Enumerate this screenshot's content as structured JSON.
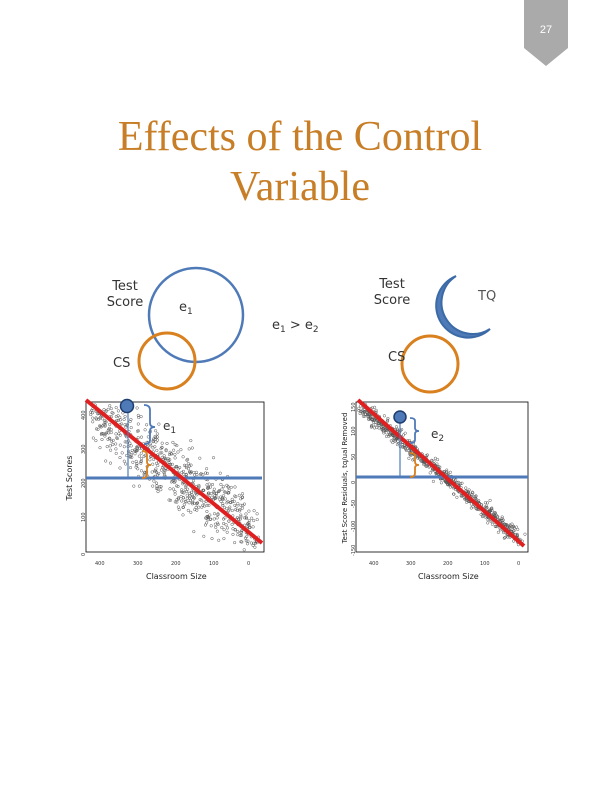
{
  "page_number": "27",
  "title_line1": "Effects of the Control",
  "title_line2": "Variable",
  "left_diagram": {
    "y_label_line1": "Test",
    "y_label_line2": "Score",
    "x_label": "CS",
    "error_base": "e",
    "error_sub": "1"
  },
  "middle": {
    "e_base1": "e",
    "sub1": "1",
    "op": ">",
    "e_base2": "e",
    "sub2": "2"
  },
  "right_diagram": {
    "y_label_line1": "Test",
    "y_label_line2": "Score",
    "x_label": "CS",
    "error_base": "e",
    "error_sub": "2",
    "control_label": "TQ"
  },
  "left_plot": {
    "ylabel": "Test Scores",
    "xlabel": "Classroom Size",
    "yticks": [
      "0",
      "100",
      "200",
      "300",
      "400"
    ],
    "xticks": [
      "400",
      "300",
      "200",
      "100",
      "0"
    ],
    "error_base": "e",
    "error_sub": "1"
  },
  "right_plot": {
    "ylabel": "Test Score Residuals, tq/ual Removed",
    "xlabel": "Classroom Size",
    "yticks": [
      "-150",
      "-100",
      "-50",
      "0",
      "50",
      "100",
      "150"
    ],
    "xticks": [
      "400",
      "300",
      "200",
      "100",
      "0"
    ],
    "error_base": "e",
    "error_sub": "2"
  },
  "colors": {
    "orange": "#d9801f",
    "blue": "#4f7ab8",
    "red": "#e02020",
    "badge": "#aaaaaa",
    "title": "#c87e26"
  }
}
